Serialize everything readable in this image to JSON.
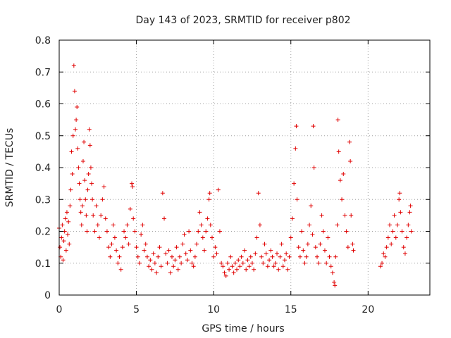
{
  "chart_data": {
    "type": "scatter",
    "title": "Day 143 of 2023, SRMTID for receiver p802",
    "xlabel": "GPS time / hours",
    "ylabel": "SRMTID / TECUs",
    "xlim": [
      0,
      24
    ],
    "ylim": [
      0,
      0.8
    ],
    "x_ticks": [
      0,
      5,
      10,
      15,
      20
    ],
    "y_ticks": [
      0,
      0.1,
      0.2,
      0.3,
      0.4,
      0.5,
      0.6,
      0.7,
      0.8
    ],
    "grid": true,
    "marker": "+",
    "color": "#e00000",
    "series": [
      {
        "name": "p802",
        "points": [
          [
            0.0,
            0.21
          ],
          [
            0.05,
            0.15
          ],
          [
            0.1,
            0.12
          ],
          [
            0.15,
            0.18
          ],
          [
            0.2,
            0.22
          ],
          [
            0.25,
            0.11
          ],
          [
            0.3,
            0.17
          ],
          [
            0.35,
            0.2
          ],
          [
            0.4,
            0.24
          ],
          [
            0.45,
            0.14
          ],
          [
            0.5,
            0.26
          ],
          [
            0.55,
            0.19
          ],
          [
            0.6,
            0.23
          ],
          [
            0.65,
            0.16
          ],
          [
            0.7,
            0.28
          ],
          [
            0.75,
            0.33
          ],
          [
            0.8,
            0.45
          ],
          [
            0.85,
            0.38
          ],
          [
            0.9,
            0.5
          ],
          [
            0.95,
            0.72
          ],
          [
            1.0,
            0.64
          ],
          [
            1.05,
            0.52
          ],
          [
            1.1,
            0.55
          ],
          [
            1.15,
            0.59
          ],
          [
            1.2,
            0.46
          ],
          [
            1.25,
            0.4
          ],
          [
            1.3,
            0.35
          ],
          [
            1.35,
            0.3
          ],
          [
            1.4,
            0.26
          ],
          [
            1.45,
            0.22
          ],
          [
            1.5,
            0.28
          ],
          [
            1.55,
            0.42
          ],
          [
            1.6,
            0.48
          ],
          [
            1.65,
            0.36
          ],
          [
            1.7,
            0.3
          ],
          [
            1.75,
            0.25
          ],
          [
            1.8,
            0.2
          ],
          [
            1.85,
            0.33
          ],
          [
            1.9,
            0.38
          ],
          [
            1.95,
            0.52
          ],
          [
            2.0,
            0.47
          ],
          [
            2.05,
            0.4
          ],
          [
            2.1,
            0.35
          ],
          [
            2.15,
            0.3
          ],
          [
            2.2,
            0.25
          ],
          [
            2.3,
            0.2
          ],
          [
            2.4,
            0.28
          ],
          [
            2.5,
            0.22
          ],
          [
            2.6,
            0.18
          ],
          [
            2.7,
            0.25
          ],
          [
            2.8,
            0.3
          ],
          [
            2.9,
            0.34
          ],
          [
            3.0,
            0.24
          ],
          [
            3.1,
            0.2
          ],
          [
            3.2,
            0.15
          ],
          [
            3.3,
            0.12
          ],
          [
            3.4,
            0.16
          ],
          [
            3.5,
            0.22
          ],
          [
            3.6,
            0.18
          ],
          [
            3.7,
            0.14
          ],
          [
            3.8,
            0.1
          ],
          [
            3.9,
            0.12
          ],
          [
            4.0,
            0.08
          ],
          [
            4.1,
            0.15
          ],
          [
            4.2,
            0.2
          ],
          [
            4.3,
            0.18
          ],
          [
            4.4,
            0.22
          ],
          [
            4.5,
            0.16
          ],
          [
            4.6,
            0.27
          ],
          [
            4.7,
            0.35
          ],
          [
            4.75,
            0.34
          ],
          [
            4.8,
            0.24
          ],
          [
            4.9,
            0.2
          ],
          [
            5.0,
            0.15
          ],
          [
            5.1,
            0.12
          ],
          [
            5.2,
            0.1
          ],
          [
            5.3,
            0.19
          ],
          [
            5.4,
            0.22
          ],
          [
            5.5,
            0.14
          ],
          [
            5.6,
            0.16
          ],
          [
            5.7,
            0.12
          ],
          [
            5.8,
            0.09
          ],
          [
            5.9,
            0.11
          ],
          [
            6.0,
            0.08
          ],
          [
            6.1,
            0.13
          ],
          [
            6.2,
            0.1
          ],
          [
            6.3,
            0.07
          ],
          [
            6.4,
            0.12
          ],
          [
            6.5,
            0.15
          ],
          [
            6.6,
            0.09
          ],
          [
            6.7,
            0.32
          ],
          [
            6.8,
            0.24
          ],
          [
            6.9,
            0.13
          ],
          [
            7.0,
            0.1
          ],
          [
            7.1,
            0.14
          ],
          [
            7.2,
            0.07
          ],
          [
            7.3,
            0.12
          ],
          [
            7.4,
            0.09
          ],
          [
            7.5,
            0.11
          ],
          [
            7.6,
            0.15
          ],
          [
            7.7,
            0.08
          ],
          [
            7.8,
            0.12
          ],
          [
            7.9,
            0.1
          ],
          [
            8.0,
            0.16
          ],
          [
            8.1,
            0.19
          ],
          [
            8.2,
            0.13
          ],
          [
            8.3,
            0.11
          ],
          [
            8.4,
            0.2
          ],
          [
            8.5,
            0.14
          ],
          [
            8.6,
            0.1
          ],
          [
            8.7,
            0.09
          ],
          [
            8.8,
            0.12
          ],
          [
            8.9,
            0.16
          ],
          [
            9.0,
            0.2
          ],
          [
            9.1,
            0.26
          ],
          [
            9.2,
            0.22
          ],
          [
            9.3,
            0.18
          ],
          [
            9.4,
            0.14
          ],
          [
            9.5,
            0.2
          ],
          [
            9.6,
            0.24
          ],
          [
            9.7,
            0.3
          ],
          [
            9.75,
            0.32
          ],
          [
            9.8,
            0.22
          ],
          [
            9.9,
            0.18
          ],
          [
            10.0,
            0.12
          ],
          [
            10.1,
            0.15
          ],
          [
            10.2,
            0.13
          ],
          [
            10.3,
            0.33
          ],
          [
            10.4,
            0.2
          ],
          [
            10.5,
            0.1
          ],
          [
            10.6,
            0.09
          ],
          [
            10.7,
            0.07
          ],
          [
            10.8,
            0.06
          ],
          [
            10.9,
            0.1
          ],
          [
            11.0,
            0.08
          ],
          [
            11.1,
            0.12
          ],
          [
            11.2,
            0.09
          ],
          [
            11.3,
            0.07
          ],
          [
            11.4,
            0.1
          ],
          [
            11.5,
            0.08
          ],
          [
            11.6,
            0.11
          ],
          [
            11.7,
            0.09
          ],
          [
            11.8,
            0.12
          ],
          [
            11.9,
            0.1
          ],
          [
            12.0,
            0.14
          ],
          [
            12.1,
            0.08
          ],
          [
            12.2,
            0.11
          ],
          [
            12.3,
            0.09
          ],
          [
            12.4,
            0.12
          ],
          [
            12.5,
            0.1
          ],
          [
            12.6,
            0.08
          ],
          [
            12.7,
            0.13
          ],
          [
            12.8,
            0.18
          ],
          [
            12.9,
            0.32
          ],
          [
            13.0,
            0.22
          ],
          [
            13.1,
            0.12
          ],
          [
            13.2,
            0.1
          ],
          [
            13.3,
            0.16
          ],
          [
            13.4,
            0.13
          ],
          [
            13.5,
            0.09
          ],
          [
            13.6,
            0.11
          ],
          [
            13.7,
            0.14
          ],
          [
            13.8,
            0.12
          ],
          [
            13.9,
            0.09
          ],
          [
            14.0,
            0.1
          ],
          [
            14.1,
            0.13
          ],
          [
            14.2,
            0.08
          ],
          [
            14.3,
            0.12
          ],
          [
            14.4,
            0.16
          ],
          [
            14.5,
            0.09
          ],
          [
            14.6,
            0.11
          ],
          [
            14.7,
            0.13
          ],
          [
            14.8,
            0.08
          ],
          [
            14.9,
            0.12
          ],
          [
            15.0,
            0.18
          ],
          [
            15.1,
            0.24
          ],
          [
            15.2,
            0.35
          ],
          [
            15.3,
            0.46
          ],
          [
            15.35,
            0.53
          ],
          [
            15.4,
            0.3
          ],
          [
            15.5,
            0.15
          ],
          [
            15.6,
            0.12
          ],
          [
            15.7,
            0.2
          ],
          [
            15.8,
            0.14
          ],
          [
            15.9,
            0.1
          ],
          [
            16.0,
            0.12
          ],
          [
            16.1,
            0.16
          ],
          [
            16.2,
            0.22
          ],
          [
            16.3,
            0.28
          ],
          [
            16.4,
            0.19
          ],
          [
            16.45,
            0.53
          ],
          [
            16.5,
            0.4
          ],
          [
            16.6,
            0.15
          ],
          [
            16.7,
            0.12
          ],
          [
            16.8,
            0.1
          ],
          [
            16.9,
            0.16
          ],
          [
            17.0,
            0.25
          ],
          [
            17.1,
            0.2
          ],
          [
            17.2,
            0.14
          ],
          [
            17.3,
            0.1
          ],
          [
            17.4,
            0.18
          ],
          [
            17.5,
            0.12
          ],
          [
            17.6,
            0.09
          ],
          [
            17.7,
            0.07
          ],
          [
            17.8,
            0.04
          ],
          [
            17.85,
            0.03
          ],
          [
            17.9,
            0.12
          ],
          [
            18.0,
            0.22
          ],
          [
            18.05,
            0.55
          ],
          [
            18.1,
            0.45
          ],
          [
            18.2,
            0.36
          ],
          [
            18.3,
            0.3
          ],
          [
            18.4,
            0.38
          ],
          [
            18.5,
            0.25
          ],
          [
            18.6,
            0.2
          ],
          [
            18.7,
            0.15
          ],
          [
            18.8,
            0.48
          ],
          [
            18.85,
            0.42
          ],
          [
            18.9,
            0.25
          ],
          [
            19.0,
            0.16
          ],
          [
            19.05,
            0.14
          ],
          [
            20.8,
            0.09
          ],
          [
            20.9,
            0.1
          ],
          [
            21.0,
            0.13
          ],
          [
            21.1,
            0.12
          ],
          [
            21.2,
            0.15
          ],
          [
            21.3,
            0.18
          ],
          [
            21.4,
            0.22
          ],
          [
            21.5,
            0.16
          ],
          [
            21.6,
            0.2
          ],
          [
            21.7,
            0.25
          ],
          [
            21.8,
            0.18
          ],
          [
            21.9,
            0.22
          ],
          [
            22.0,
            0.3
          ],
          [
            22.05,
            0.32
          ],
          [
            22.1,
            0.26
          ],
          [
            22.2,
            0.2
          ],
          [
            22.3,
            0.15
          ],
          [
            22.4,
            0.13
          ],
          [
            22.5,
            0.18
          ],
          [
            22.6,
            0.22
          ],
          [
            22.7,
            0.26
          ],
          [
            22.75,
            0.28
          ],
          [
            22.8,
            0.2
          ]
        ]
      }
    ]
  }
}
